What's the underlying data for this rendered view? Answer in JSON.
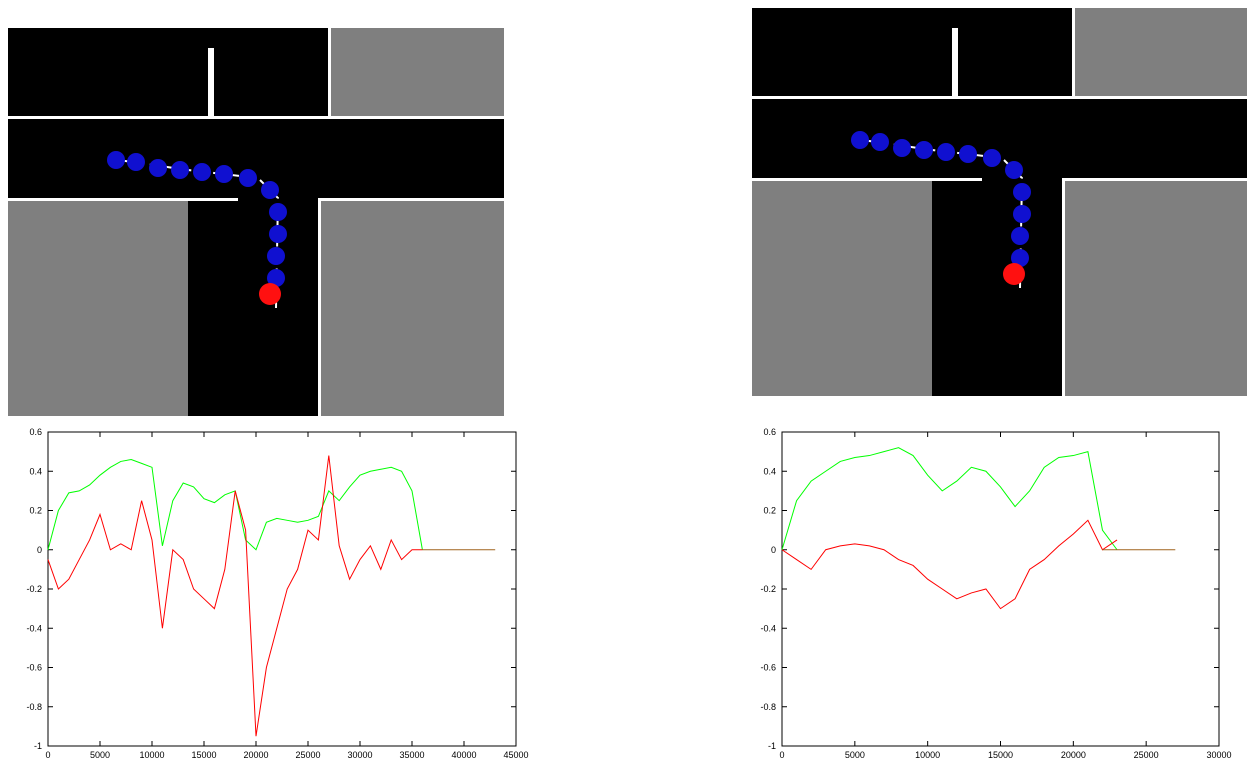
{
  "chart_data": [
    {
      "type": "line",
      "x": [
        0,
        1000,
        2000,
        3000,
        4000,
        5000,
        6000,
        7000,
        8000,
        9000,
        10000,
        11000,
        12000,
        13000,
        14000,
        15000,
        16000,
        17000,
        18000,
        19000,
        20000,
        21000,
        22000,
        23000,
        24000,
        25000,
        26000,
        27000,
        28000,
        29000,
        30000,
        31000,
        32000,
        33000,
        34000,
        35000,
        36000,
        37000,
        38000,
        39000,
        40000,
        41000,
        42000,
        43000
      ],
      "series": [
        {
          "color": "#00ff00",
          "values": [
            0,
            0.2,
            0.29,
            0.3,
            0.33,
            0.38,
            0.42,
            0.45,
            0.46,
            0.44,
            0.42,
            0.02,
            0.25,
            0.34,
            0.32,
            0.26,
            0.24,
            0.28,
            0.3,
            0.05,
            0,
            0.14,
            0.16,
            0.15,
            0.14,
            0.15,
            0.17,
            0.3,
            0.25,
            0.32,
            0.38,
            0.4,
            0.41,
            0.42,
            0.4,
            0.3,
            0,
            null,
            null,
            null,
            null,
            null,
            null,
            null
          ]
        },
        {
          "color": "#ff0000",
          "values": [
            -0.05,
            -0.2,
            -0.15,
            -0.05,
            0.05,
            0.18,
            0,
            0.03,
            0,
            0.25,
            0.05,
            -0.4,
            0,
            -0.05,
            -0.2,
            -0.25,
            -0.3,
            -0.1,
            0.3,
            0.1,
            -0.95,
            -0.6,
            -0.4,
            -0.2,
            -0.1,
            0.1,
            0.05,
            0.48,
            0.02,
            -0.15,
            -0.05,
            0.02,
            -0.1,
            0.05,
            -0.05,
            0,
            0,
            null,
            null,
            null,
            null,
            null,
            null,
            null
          ]
        },
        {
          "color": "#a0641e",
          "values": [
            null,
            null,
            null,
            null,
            null,
            null,
            null,
            null,
            null,
            null,
            null,
            null,
            null,
            null,
            null,
            null,
            null,
            null,
            null,
            null,
            null,
            null,
            null,
            null,
            null,
            null,
            null,
            null,
            null,
            null,
            null,
            null,
            null,
            null,
            null,
            null,
            0,
            0,
            0,
            0,
            0,
            0,
            0,
            0
          ]
        }
      ],
      "xlim": [
        0,
        45000
      ],
      "xticks": [
        0,
        5000,
        10000,
        15000,
        20000,
        25000,
        30000,
        35000,
        40000,
        45000
      ],
      "ylim": [
        -1,
        0.6
      ],
      "yticks": [
        -1,
        -0.8,
        -0.6,
        -0.4,
        -0.2,
        0,
        0.2,
        0.4,
        0.6
      ]
    },
    {
      "type": "line",
      "x": [
        0,
        1000,
        2000,
        3000,
        4000,
        5000,
        6000,
        7000,
        8000,
        9000,
        10000,
        11000,
        12000,
        13000,
        14000,
        15000,
        16000,
        17000,
        18000,
        19000,
        20000,
        21000,
        22000,
        23000,
        24000,
        25000,
        26000,
        27000
      ],
      "series": [
        {
          "color": "#00ff00",
          "values": [
            0,
            0.25,
            0.35,
            0.4,
            0.45,
            0.47,
            0.48,
            0.5,
            0.52,
            0.48,
            0.38,
            0.3,
            0.35,
            0.42,
            0.4,
            0.32,
            0.22,
            0.3,
            0.42,
            0.47,
            0.48,
            0.5,
            0.1,
            0,
            null,
            null,
            null,
            null
          ]
        },
        {
          "color": "#ff0000",
          "values": [
            0,
            -0.05,
            -0.1,
            0,
            0.02,
            0.03,
            0.02,
            0,
            -0.05,
            -0.08,
            -0.15,
            -0.2,
            -0.25,
            -0.22,
            -0.2,
            -0.3,
            -0.25,
            -0.1,
            -0.05,
            0.02,
            0.08,
            0.15,
            0,
            0.05,
            null,
            null,
            null,
            null
          ]
        },
        {
          "color": "#a0641e",
          "values": [
            null,
            null,
            null,
            null,
            null,
            null,
            null,
            null,
            null,
            null,
            null,
            null,
            null,
            null,
            null,
            null,
            null,
            null,
            null,
            null,
            null,
            null,
            0,
            0,
            0,
            0,
            0,
            0
          ]
        }
      ],
      "xlim": [
        0,
        30000
      ],
      "xticks": [
        0,
        5000,
        10000,
        15000,
        20000,
        25000,
        30000
      ],
      "ylim": [
        -1,
        0.6
      ],
      "yticks": [
        -1,
        -0.8,
        -0.6,
        -0.4,
        -0.2,
        0,
        0.2,
        0.4,
        0.6
      ]
    }
  ]
}
